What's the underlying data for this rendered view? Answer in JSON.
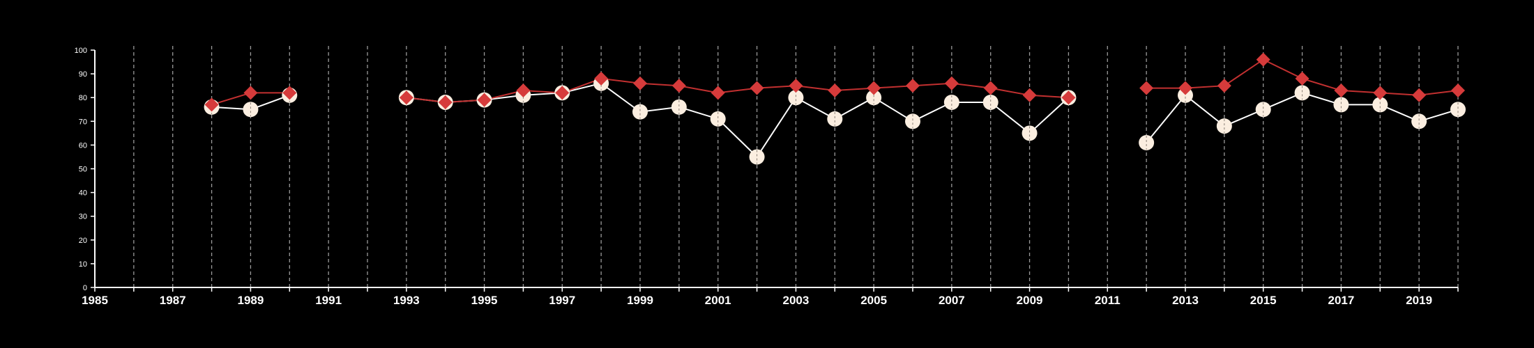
{
  "chart_data": {
    "type": "line",
    "title": "",
    "xlabel": "",
    "ylabel": "",
    "xlim": [
      1985,
      2020
    ],
    "ylim": [
      0,
      100
    ],
    "y_ticks": [
      0,
      10,
      20,
      30,
      40,
      50,
      60,
      70,
      80,
      90,
      100
    ],
    "x_tick_labels": [
      "1985",
      "1987",
      "1989",
      "1991",
      "1993",
      "1995",
      "1997",
      "1999",
      "2001",
      "2003",
      "2005",
      "2007",
      "2009",
      "2011",
      "2013",
      "2015",
      "2017",
      "2019"
    ],
    "x_ticks_every_year": true,
    "vertical_grid": "dashed, one per year",
    "background": "#000000",
    "series": [
      {
        "marker": "circle",
        "color": "#fbeee0",
        "line_color": "#ffffff",
        "points": [
          [
            1988,
            76
          ],
          [
            1989,
            75
          ],
          [
            1990,
            81
          ],
          [
            1993,
            80
          ],
          [
            1994,
            78
          ],
          [
            1995,
            79
          ],
          [
            1996,
            81
          ],
          [
            1997,
            82
          ],
          [
            1998,
            86
          ],
          [
            1999,
            74
          ],
          [
            2000,
            76
          ],
          [
            2001,
            71
          ],
          [
            2002,
            55
          ],
          [
            2003,
            80
          ],
          [
            2004,
            71
          ],
          [
            2005,
            80
          ],
          [
            2006,
            70
          ],
          [
            2007,
            78
          ],
          [
            2008,
            78
          ],
          [
            2009,
            65
          ],
          [
            2010,
            80
          ],
          [
            2012,
            61
          ],
          [
            2013,
            81
          ],
          [
            2014,
            68
          ],
          [
            2015,
            75
          ],
          [
            2016,
            82
          ],
          [
            2017,
            77
          ],
          [
            2018,
            77
          ],
          [
            2019,
            70
          ],
          [
            2020,
            75
          ]
        ]
      },
      {
        "marker": "diamond",
        "color": "#d63b3b",
        "line_color": "#c23030",
        "points": [
          [
            1988,
            77
          ],
          [
            1989,
            82
          ],
          [
            1990,
            82
          ],
          [
            1993,
            80
          ],
          [
            1994,
            78
          ],
          [
            1995,
            79
          ],
          [
            1996,
            83
          ],
          [
            1997,
            82
          ],
          [
            1998,
            88
          ],
          [
            1999,
            86
          ],
          [
            2000,
            85
          ],
          [
            2001,
            82
          ],
          [
            2002,
            84
          ],
          [
            2003,
            85
          ],
          [
            2004,
            83
          ],
          [
            2005,
            84
          ],
          [
            2006,
            85
          ],
          [
            2007,
            86
          ],
          [
            2008,
            84
          ],
          [
            2009,
            81
          ],
          [
            2010,
            80
          ],
          [
            2012,
            84
          ],
          [
            2013,
            84
          ],
          [
            2014,
            85
          ],
          [
            2015,
            96
          ],
          [
            2016,
            88
          ],
          [
            2017,
            83
          ],
          [
            2018,
            82
          ],
          [
            2019,
            81
          ],
          [
            2020,
            83
          ]
        ]
      }
    ]
  }
}
